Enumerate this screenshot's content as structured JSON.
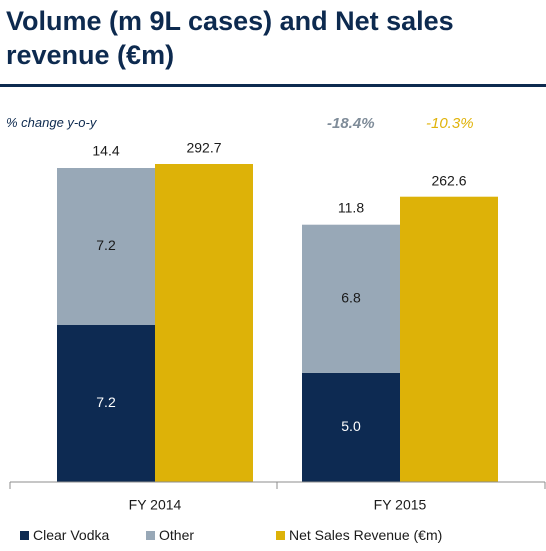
{
  "title": "Volume (m 9L cases) and Net sales revenue (€m)",
  "yoy_label": "% change y-o-y",
  "pct_changes": {
    "volume": "-18.4%",
    "revenue": "-10.3%"
  },
  "colors": {
    "clear_vodka": "#0d2a52",
    "other": "#98a8b7",
    "net_sales": "#ddb208",
    "title": "#0d2a4f"
  },
  "chart_data": {
    "type": "bar",
    "categories": [
      "FY 2014",
      "FY 2015"
    ],
    "volume_stack": [
      {
        "name": "Clear Vodka",
        "values": [
          7.2,
          5.0
        ],
        "labels": [
          "7.2",
          "5.0"
        ]
      },
      {
        "name": "Other",
        "values": [
          7.2,
          6.8
        ],
        "labels": [
          "7.2",
          "6.8"
        ]
      }
    ],
    "volume_totals": {
      "values": [
        14.4,
        11.8
      ],
      "labels": [
        "14.4",
        "11.8"
      ]
    },
    "revenue": {
      "name": "Net Sales Revenue (€m)",
      "values": [
        292.7,
        262.6
      ],
      "labels": [
        "292.7",
        "262.6"
      ]
    },
    "volume_max": 14.4,
    "revenue_max": 292.7
  },
  "legend": [
    {
      "label": "Clear Vodka",
      "color": "#0d2a52"
    },
    {
      "label": "Other",
      "color": "#98a8b7"
    },
    {
      "label": "Net Sales Revenue (€m)",
      "color": "#ddb208"
    }
  ]
}
